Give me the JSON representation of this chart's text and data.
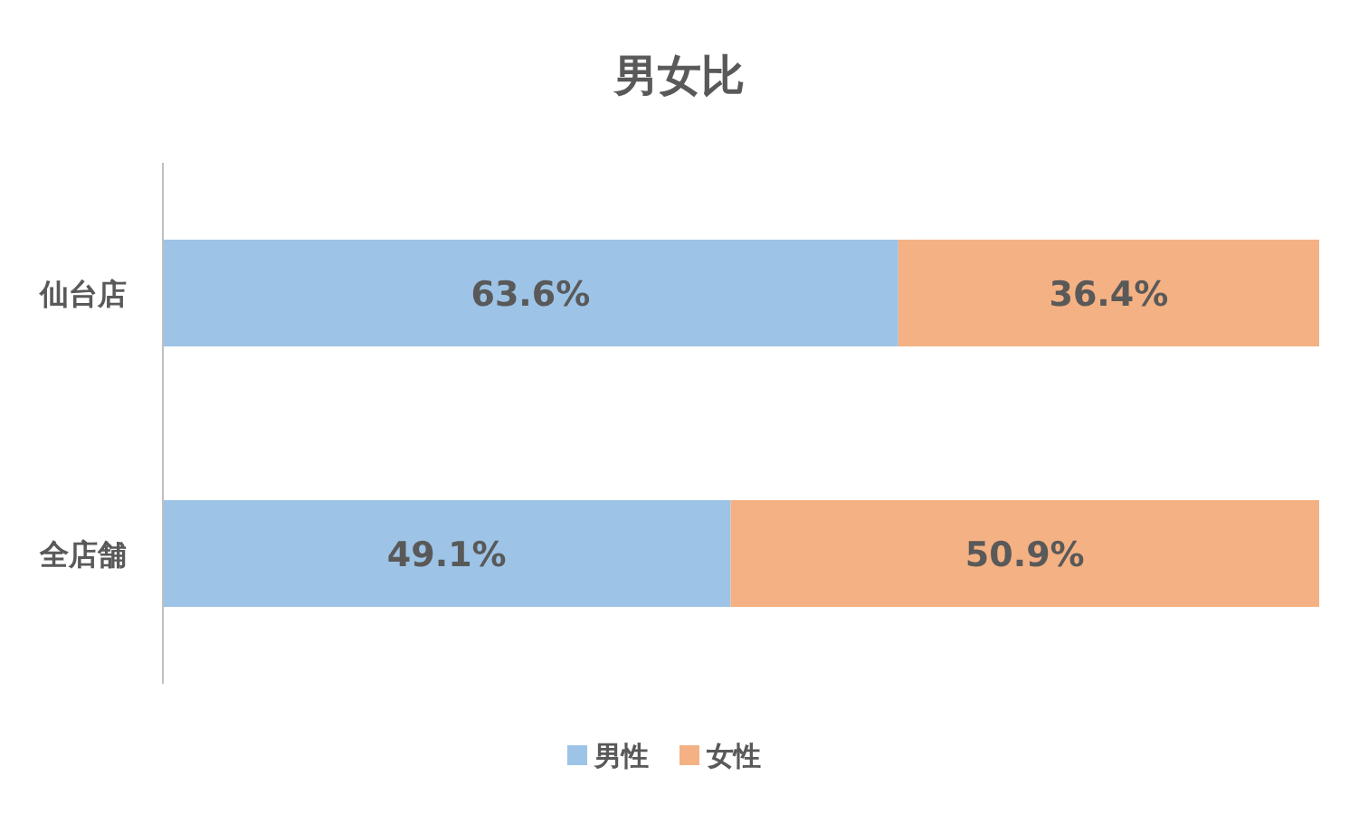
{
  "chart_data": {
    "type": "bar",
    "orientation": "horizontal",
    "stacked": true,
    "title": "男女比",
    "categories": [
      "仙台店",
      "全店舗"
    ],
    "series": [
      {
        "name": "男性",
        "color": "#9dc3e6",
        "values": [
          63.6,
          49.1
        ],
        "value_labels": [
          "63.6%",
          "49.1%"
        ]
      },
      {
        "name": "女性",
        "color": "#f4b183",
        "values": [
          36.4,
          50.9
        ],
        "value_labels": [
          "36.4%",
          "50.9%"
        ]
      }
    ],
    "legend": "bottom"
  }
}
